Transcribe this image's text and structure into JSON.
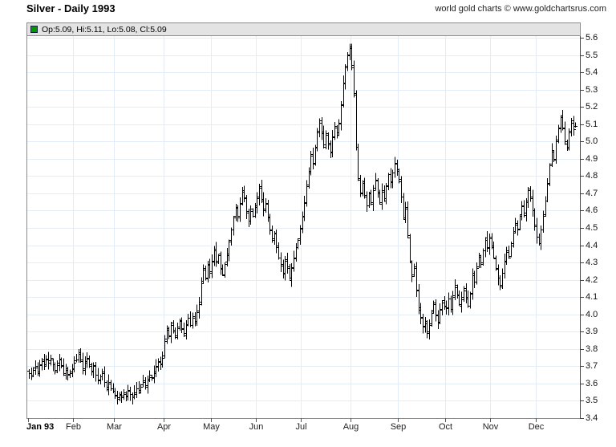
{
  "header": {
    "title": "Silver - Daily 1993",
    "copyright": "world gold charts © www.goldchartsrus.com"
  },
  "legend": {
    "text": "Op:5.09, Hi:5.11, Lo:5.08, Cl:5.09",
    "marker_color": "#009900"
  },
  "chart_data": {
    "type": "ohlc",
    "title": "Silver - Daily 1993",
    "series_name": "Silver",
    "xlabel": "",
    "ylabel": "",
    "grid": true,
    "legend_position": "top-left",
    "x_axis": {
      "months": [
        "Jan 93",
        "Feb",
        "Mar",
        "Apr",
        "May",
        "Jun",
        "Jul",
        "Aug",
        "Sep",
        "Oct",
        "Nov",
        "Dec"
      ],
      "days_per_month": [
        21,
        19,
        23,
        22,
        21,
        21,
        23,
        22,
        22,
        21,
        21,
        19
      ]
    },
    "y_axis": {
      "min": 3.4,
      "max": 5.6,
      "step": 0.1,
      "tick_labels": [
        "3.4",
        "3.5",
        "3.6",
        "3.7",
        "3.8",
        "3.9",
        "4.0",
        "4.1",
        "4.2",
        "4.3",
        "4.4",
        "4.5",
        "4.6",
        "4.7",
        "4.8",
        "4.9",
        "5.0",
        "5.1",
        "5.2",
        "5.3",
        "5.4",
        "5.5",
        "5.6"
      ]
    },
    "last_bar": {
      "open": 5.09,
      "high": 5.11,
      "low": 5.08,
      "close": 5.09
    },
    "closes": [
      3.66,
      3.64,
      3.68,
      3.7,
      3.67,
      3.71,
      3.73,
      3.7,
      3.74,
      3.72,
      3.75,
      3.71,
      3.68,
      3.72,
      3.74,
      3.7,
      3.66,
      3.69,
      3.65,
      3.67,
      3.69,
      3.72,
      3.74,
      3.77,
      3.73,
      3.69,
      3.72,
      3.75,
      3.71,
      3.67,
      3.7,
      3.65,
      3.62,
      3.64,
      3.66,
      3.61,
      3.58,
      3.61,
      3.57,
      3.56,
      3.53,
      3.51,
      3.54,
      3.52,
      3.55,
      3.53,
      3.56,
      3.54,
      3.52,
      3.55,
      3.57,
      3.55,
      3.58,
      3.61,
      3.59,
      3.62,
      3.65,
      3.63,
      3.67,
      3.7,
      3.73,
      3.71,
      3.75,
      3.86,
      3.92,
      3.88,
      3.94,
      3.9,
      3.87,
      3.92,
      3.96,
      3.92,
      3.89,
      3.94,
      3.98,
      3.94,
      3.99,
      3.96,
      4.02,
      4.06,
      4.18,
      4.26,
      4.21,
      4.29,
      4.25,
      4.31,
      4.37,
      4.3,
      4.34,
      4.27,
      4.23,
      4.29,
      4.35,
      4.42,
      4.49,
      4.56,
      4.62,
      4.57,
      4.64,
      4.72,
      4.67,
      4.59,
      4.54,
      4.61,
      4.57,
      4.63,
      4.68,
      4.73,
      4.66,
      4.6,
      4.64,
      4.56,
      4.49,
      4.43,
      4.47,
      4.39,
      4.33,
      4.28,
      4.24,
      4.31,
      4.27,
      4.21,
      4.27,
      4.33,
      4.39,
      4.43,
      4.5,
      4.57,
      4.65,
      4.74,
      4.83,
      4.92,
      4.87,
      4.97,
      5.06,
      5.12,
      5.05,
      4.97,
      5.05,
      4.99,
      4.94,
      5.03,
      5.09,
      5.04,
      5.11,
      5.21,
      5.34,
      5.43,
      5.5,
      5.55,
      5.44,
      5.27,
      4.97,
      4.78,
      4.7,
      4.76,
      4.68,
      4.63,
      4.7,
      4.65,
      4.72,
      4.78,
      4.71,
      4.65,
      4.72,
      4.67,
      4.74,
      4.81,
      4.77,
      4.82,
      4.87,
      4.84,
      4.77,
      4.68,
      4.56,
      4.61,
      4.46,
      4.31,
      4.22,
      4.27,
      4.14,
      4.04,
      3.98,
      3.93,
      3.96,
      3.9,
      3.94,
      4.01,
      4.07,
      4.0,
      3.95,
      4.03,
      4.07,
      4.05,
      4.04,
      4.09,
      4.03,
      4.11,
      4.17,
      4.11,
      4.06,
      4.1,
      4.15,
      4.09,
      4.05,
      4.12,
      4.24,
      4.19,
      4.27,
      4.34,
      4.29,
      4.37,
      4.43,
      4.39,
      4.45,
      4.4,
      4.33,
      4.27,
      4.21,
      4.17,
      4.24,
      4.31,
      4.37,
      4.33,
      4.41,
      4.47,
      4.53,
      4.49,
      4.57,
      4.63,
      4.59,
      4.66,
      4.72,
      4.67,
      4.6,
      4.51,
      4.45,
      4.41,
      4.49,
      4.57,
      4.66,
      4.76,
      4.86,
      4.95,
      4.9,
      5.0,
      5.08,
      5.14,
      5.08,
      5.0,
      4.97,
      5.06,
      5.12,
      5.07,
      5.09
    ],
    "colors": {
      "bar": "#000000",
      "grid": "#e2edf8",
      "axis": "#444444",
      "border": "#8a8a8a",
      "legend_bg": "#e3e3e3"
    }
  }
}
